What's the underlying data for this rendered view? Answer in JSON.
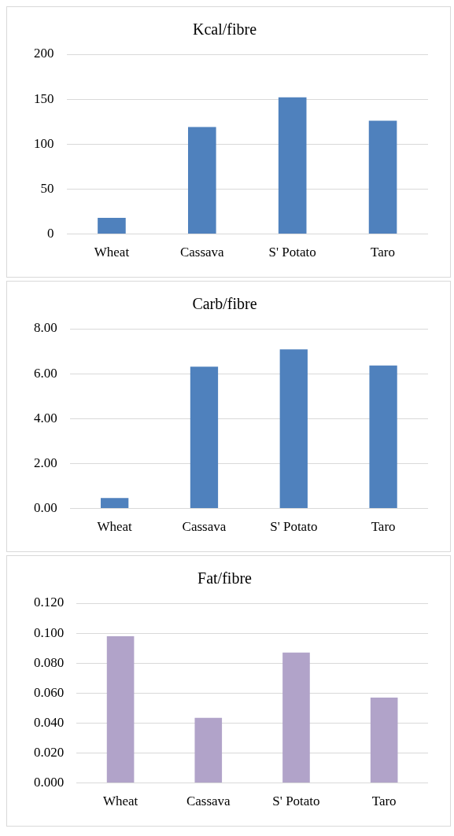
{
  "chart_data": [
    {
      "type": "bar",
      "title": "Kcal/fibre",
      "categories": [
        "Wheat",
        "Cassava",
        "S' Potato",
        "Taro"
      ],
      "values": [
        18,
        119,
        152,
        126
      ],
      "color": "#4f81bd",
      "ylim": [
        0,
        200
      ],
      "yticks": [
        0,
        50,
        100,
        150,
        200
      ],
      "grid": "y"
    },
    {
      "type": "bar",
      "title": "Carb/fibre",
      "categories": [
        "Wheat",
        "Cassava",
        "S' Potato",
        "Taro"
      ],
      "values": [
        0.47,
        6.31,
        7.08,
        6.36
      ],
      "color": "#4f81bd",
      "ylim": [
        0,
        8
      ],
      "yticks": [
        {
          "value": 0,
          "label": "0.00"
        },
        {
          "value": 2,
          "label": "2.00"
        },
        {
          "value": 4,
          "label": "4.00"
        },
        {
          "value": 6,
          "label": "6.00"
        },
        {
          "value": 8,
          "label": "8.00"
        }
      ],
      "grid": "y"
    },
    {
      "type": "bar",
      "title": "Fat/fibre",
      "categories": [
        "Wheat",
        "Cassava",
        "S' Potato",
        "Taro"
      ],
      "values": [
        0.098,
        0.0435,
        0.087,
        0.057
      ],
      "color": "#b1a3c9",
      "ylim": [
        0,
        0.12
      ],
      "yticks": [
        {
          "value": 0,
          "label": "0.000"
        },
        {
          "value": 0.02,
          "label": "0.020"
        },
        {
          "value": 0.04,
          "label": "0.040"
        },
        {
          "value": 0.06,
          "label": "0.060"
        },
        {
          "value": 0.08,
          "label": "0.080"
        },
        {
          "value": 0.1,
          "label": "0.100"
        },
        {
          "value": 0.12,
          "label": "0.120"
        }
      ],
      "grid": "y"
    }
  ]
}
